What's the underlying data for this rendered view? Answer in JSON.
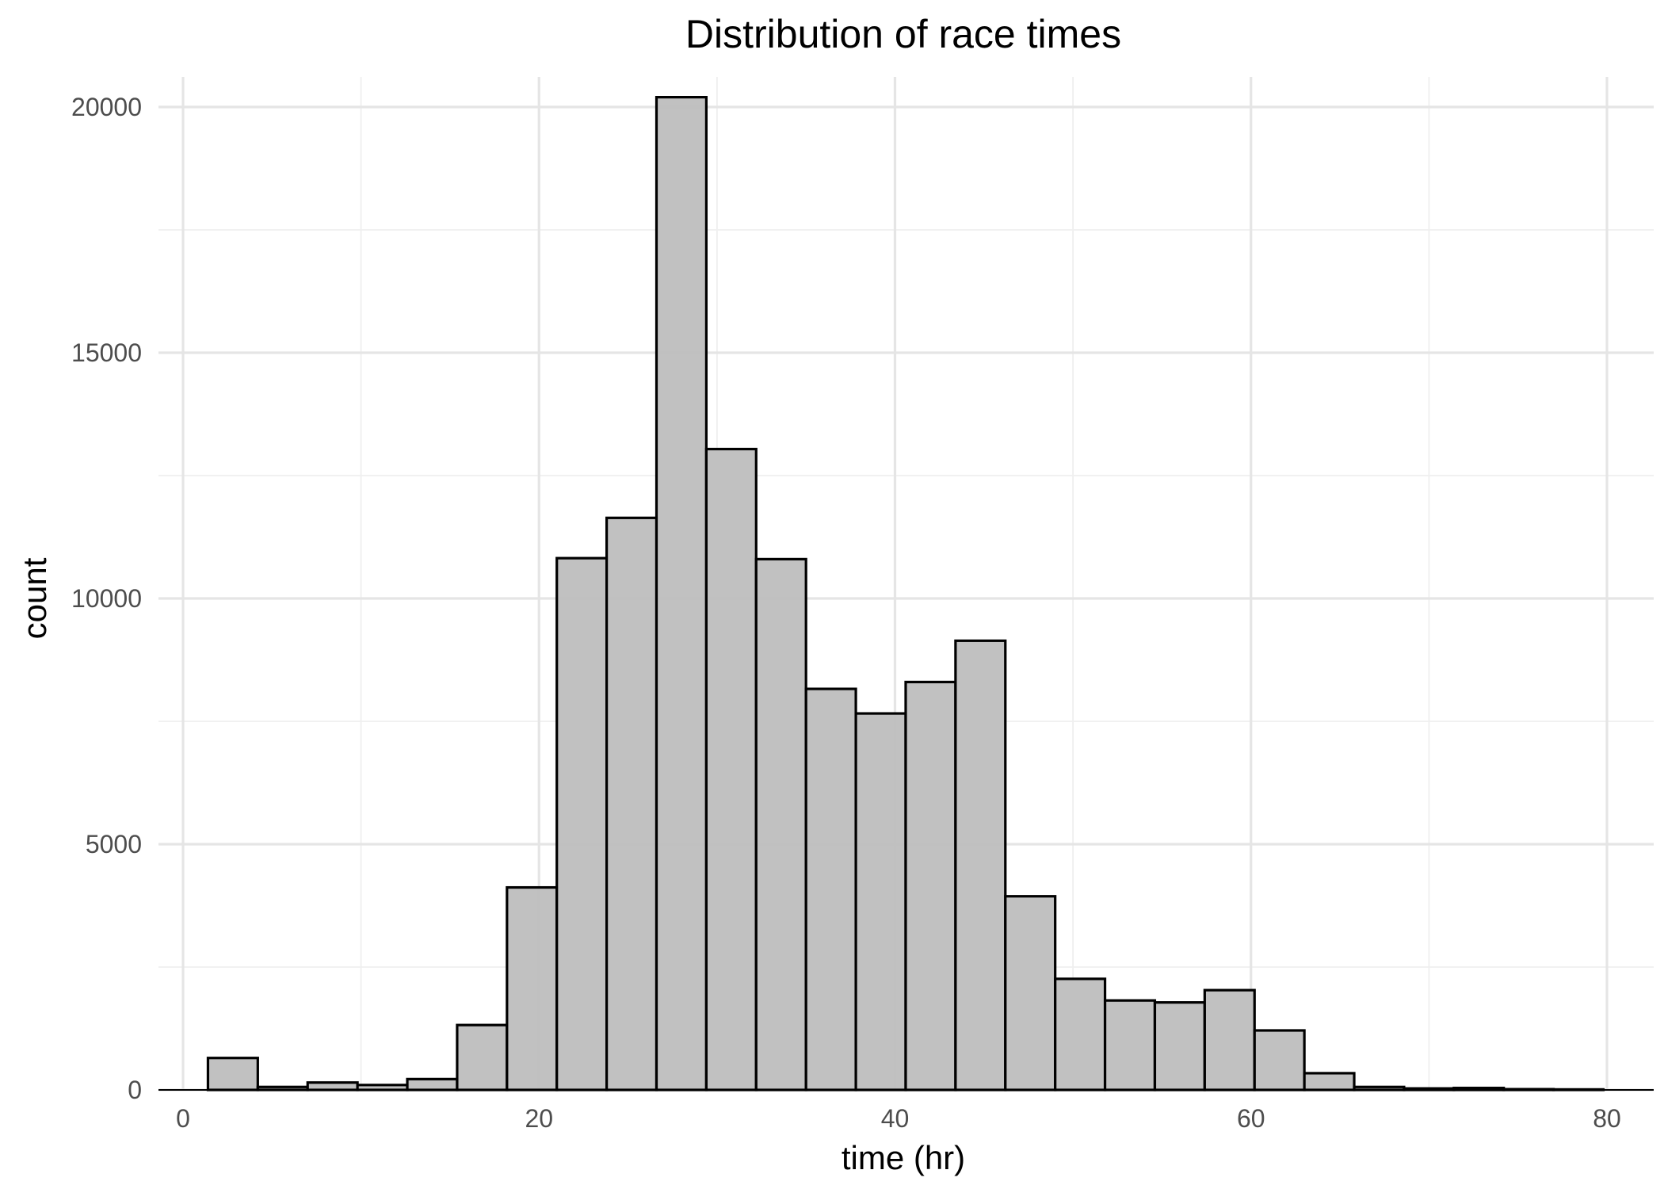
{
  "chart_data": {
    "type": "bar",
    "title": "Distribution of race times",
    "xlabel": "time (hr)",
    "ylabel": "count",
    "xlim": [
      0,
      82
    ],
    "ylim": [
      0,
      20200
    ],
    "xticks": [
      0,
      20,
      40,
      60,
      80
    ],
    "yticks": [
      0,
      5000,
      10000,
      15000,
      20000
    ],
    "grid": true,
    "colors": {
      "bar_fill": "#bebebe",
      "bar_stroke": "#000000",
      "grid": "#e5e5e5"
    },
    "bins": [
      {
        "x_start": 1.4,
        "x_end": 4.2,
        "count": 650
      },
      {
        "x_start": 4.2,
        "x_end": 7.0,
        "count": 60
      },
      {
        "x_start": 7.0,
        "x_end": 9.8,
        "count": 150
      },
      {
        "x_start": 9.8,
        "x_end": 12.6,
        "count": 100
      },
      {
        "x_start": 12.6,
        "x_end": 15.4,
        "count": 220
      },
      {
        "x_start": 15.4,
        "x_end": 18.2,
        "count": 1320
      },
      {
        "x_start": 18.2,
        "x_end": 21.0,
        "count": 4120
      },
      {
        "x_start": 21.0,
        "x_end": 23.8,
        "count": 10820
      },
      {
        "x_start": 23.8,
        "x_end": 26.6,
        "count": 11640
      },
      {
        "x_start": 26.6,
        "x_end": 29.4,
        "count": 20200
      },
      {
        "x_start": 29.4,
        "x_end": 32.2,
        "count": 13040
      },
      {
        "x_start": 32.2,
        "x_end": 35.0,
        "count": 10800
      },
      {
        "x_start": 35.0,
        "x_end": 37.8,
        "count": 8160
      },
      {
        "x_start": 37.8,
        "x_end": 40.6,
        "count": 7660
      },
      {
        "x_start": 40.6,
        "x_end": 43.4,
        "count": 8300
      },
      {
        "x_start": 43.4,
        "x_end": 46.2,
        "count": 9140
      },
      {
        "x_start": 46.2,
        "x_end": 49.0,
        "count": 3940
      },
      {
        "x_start": 49.0,
        "x_end": 51.8,
        "count": 2260
      },
      {
        "x_start": 51.8,
        "x_end": 54.6,
        "count": 1820
      },
      {
        "x_start": 54.6,
        "x_end": 57.4,
        "count": 1780
      },
      {
        "x_start": 57.4,
        "x_end": 60.2,
        "count": 2030
      },
      {
        "x_start": 60.2,
        "x_end": 63.0,
        "count": 1210
      },
      {
        "x_start": 63.0,
        "x_end": 65.8,
        "count": 340
      },
      {
        "x_start": 65.8,
        "x_end": 68.6,
        "count": 60
      },
      {
        "x_start": 68.6,
        "x_end": 71.4,
        "count": 30
      },
      {
        "x_start": 71.4,
        "x_end": 74.2,
        "count": 40
      },
      {
        "x_start": 74.2,
        "x_end": 77.0,
        "count": 15
      },
      {
        "x_start": 77.0,
        "x_end": 79.8,
        "count": 10
      }
    ]
  }
}
